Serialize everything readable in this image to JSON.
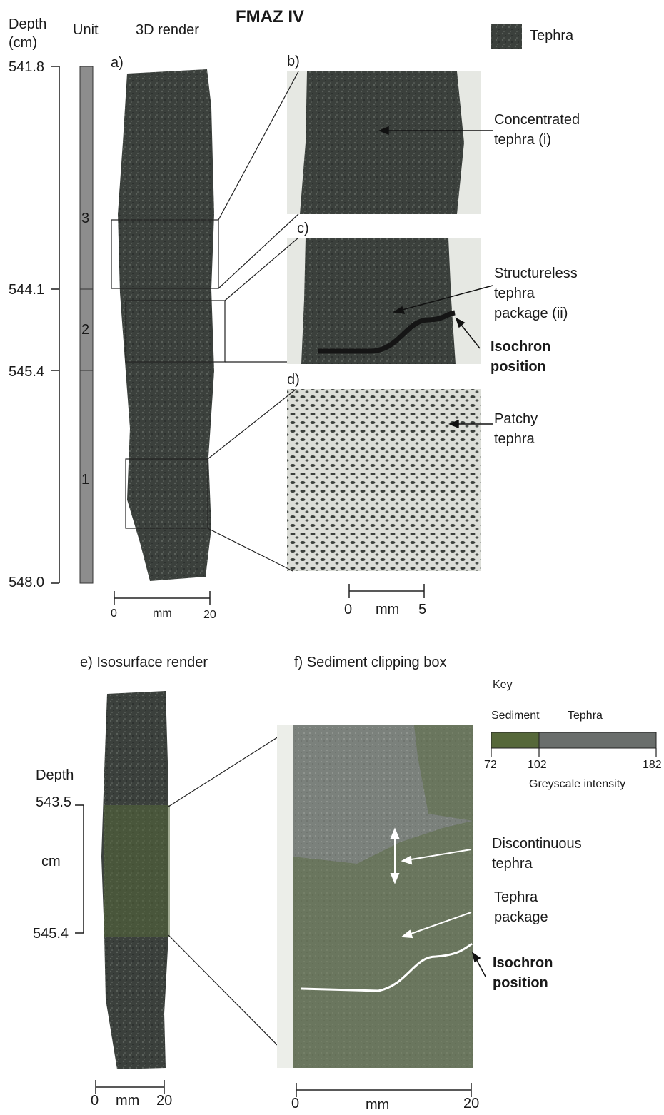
{
  "title": "FMAZ IV",
  "headers": {
    "depth": "Depth",
    "depth_unit": "(cm)",
    "unit": "Unit",
    "render3d": "3D render"
  },
  "legend_top": {
    "label": "Tephra",
    "swatch_color": "#3f4540"
  },
  "depth_ticks": [
    "541.8",
    "544.1",
    "545.4",
    "548.0"
  ],
  "units": [
    "3",
    "2",
    "1"
  ],
  "panels": {
    "a": "a)",
    "b": "b)",
    "c": "c)",
    "d": "d)"
  },
  "annotations": {
    "concentrated": [
      "Concentrated",
      "tephra (i)"
    ],
    "structureless": [
      "Structureless",
      "tephra",
      "package (ii)"
    ],
    "isochron_top": [
      "Isochron",
      "position"
    ],
    "patchy": [
      "Patchy",
      "tephra"
    ]
  },
  "scale_a": {
    "start": "0",
    "unit": "mm",
    "end": "20"
  },
  "scale_bcd": {
    "start": "0",
    "unit": "mm",
    "end": "5"
  },
  "lower_titles": {
    "e": "e) Isosurface render",
    "f": "f) Sediment clipping box"
  },
  "depth_e": {
    "label": "Depth",
    "top": "543.5",
    "unit": "cm",
    "bottom": "545.4"
  },
  "key": {
    "title": "Key",
    "sediment_label": "Sediment",
    "tephra_label": "Tephra",
    "ticks": [
      "72",
      "102",
      "182"
    ],
    "axis_label": "Greyscale intensity",
    "sediment_color": "#56683a",
    "tephra_color": "#6a6e6c"
  },
  "annotations_f": {
    "discontinuous": [
      "Discontinuous",
      "tephra"
    ],
    "package": [
      "Tephra",
      "package"
    ],
    "isochron": [
      "Isochron",
      "position"
    ]
  },
  "scale_e": {
    "start": "0",
    "unit": "mm",
    "end": "20"
  },
  "scale_f": {
    "start": "0",
    "unit": "mm",
    "end": "20"
  }
}
